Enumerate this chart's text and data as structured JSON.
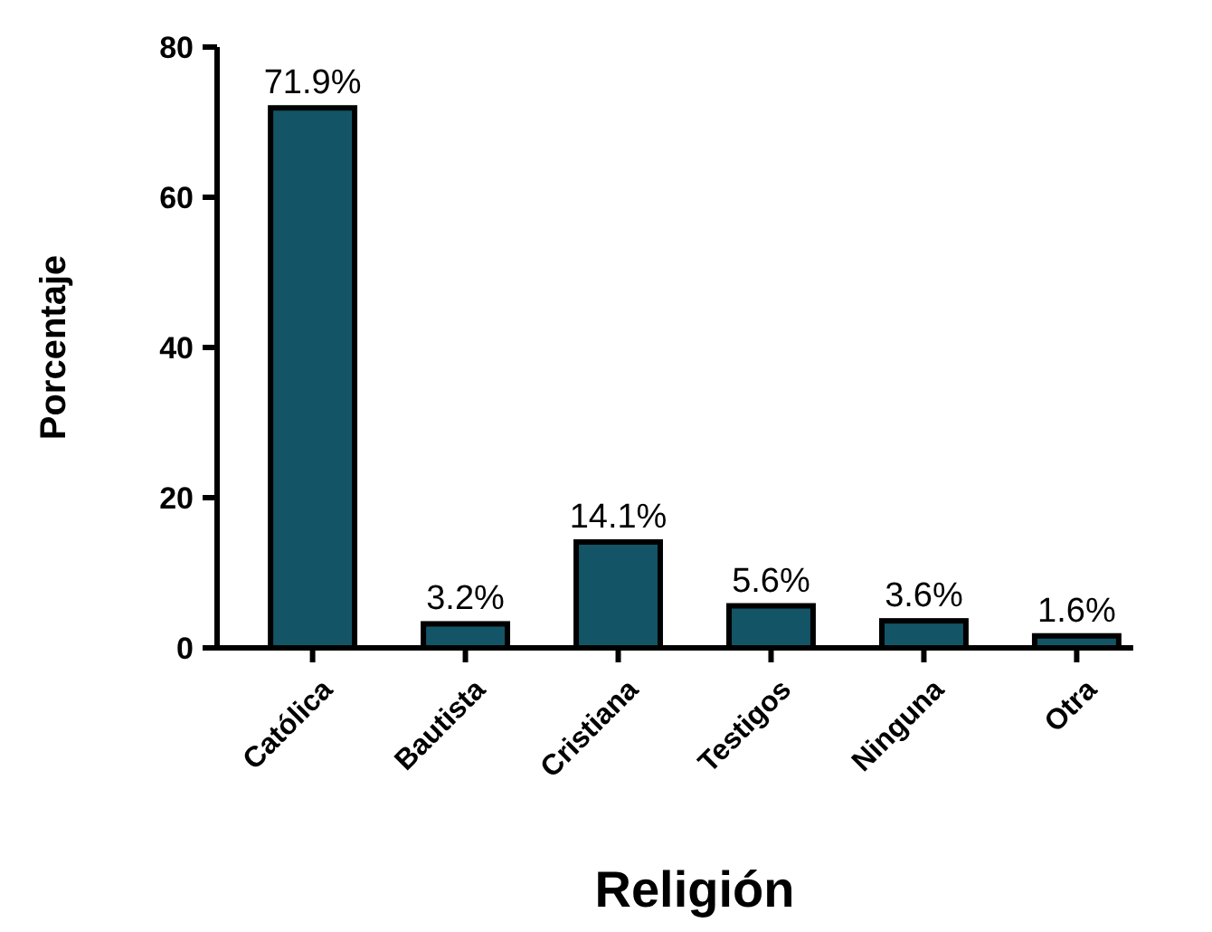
{
  "chart_data": {
    "type": "bar",
    "xlabel": "Religión",
    "ylabel": "Porcentaje",
    "categories": [
      "Católica",
      "Bautista",
      "Cristiana",
      "Testigos",
      "Ninguna",
      "Otra"
    ],
    "values": [
      71.9,
      3.2,
      14.1,
      5.6,
      3.6,
      1.6
    ],
    "value_labels": [
      "71.9%",
      "3.2%",
      "14.1%",
      "5.6%",
      "3.6%",
      "1.6%"
    ],
    "color": "#135566",
    "ylim": [
      0,
      80
    ],
    "yticks": [
      0,
      20,
      40,
      60,
      80
    ]
  }
}
